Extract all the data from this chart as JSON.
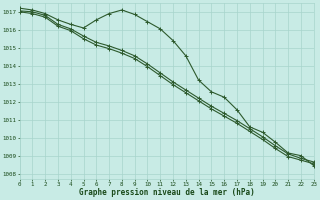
{
  "title": "Graphe pression niveau de la mer (hPa)",
  "bg_color": "#c8ebe5",
  "grid_color": "#a8d5cc",
  "line_color": "#2d5a2d",
  "text_color": "#1a4a1a",
  "xlim": [
    0,
    23
  ],
  "ylim": [
    1007.7,
    1017.5
  ],
  "yticks": [
    1008,
    1009,
    1010,
    1011,
    1012,
    1013,
    1014,
    1015,
    1016,
    1017
  ],
  "xticks": [
    0,
    1,
    2,
    3,
    4,
    5,
    6,
    7,
    8,
    9,
    10,
    11,
    12,
    13,
    14,
    15,
    16,
    17,
    18,
    19,
    20,
    21,
    22,
    23
  ],
  "series1": [
    1017.2,
    1017.1,
    1016.9,
    1016.55,
    1016.3,
    1016.1,
    1016.55,
    1016.9,
    1017.1,
    1016.85,
    1016.45,
    1016.05,
    1015.4,
    1014.55,
    1013.2,
    1012.55,
    1012.25,
    1011.55,
    1010.6,
    1010.3,
    1009.75,
    1009.15,
    1009.0,
    1008.45
  ],
  "series2": [
    1017.05,
    1017.0,
    1016.8,
    1016.3,
    1016.05,
    1015.65,
    1015.3,
    1015.1,
    1014.85,
    1014.55,
    1014.1,
    1013.6,
    1013.1,
    1012.65,
    1012.2,
    1011.75,
    1011.35,
    1010.95,
    1010.5,
    1010.05,
    1009.55,
    1009.1,
    1008.85,
    1008.65
  ],
  "series3": [
    1017.0,
    1016.9,
    1016.7,
    1016.2,
    1015.95,
    1015.5,
    1015.15,
    1014.95,
    1014.7,
    1014.4,
    1013.95,
    1013.45,
    1012.95,
    1012.5,
    1012.05,
    1011.6,
    1011.2,
    1010.8,
    1010.35,
    1009.9,
    1009.4,
    1008.95,
    1008.75,
    1008.55
  ]
}
